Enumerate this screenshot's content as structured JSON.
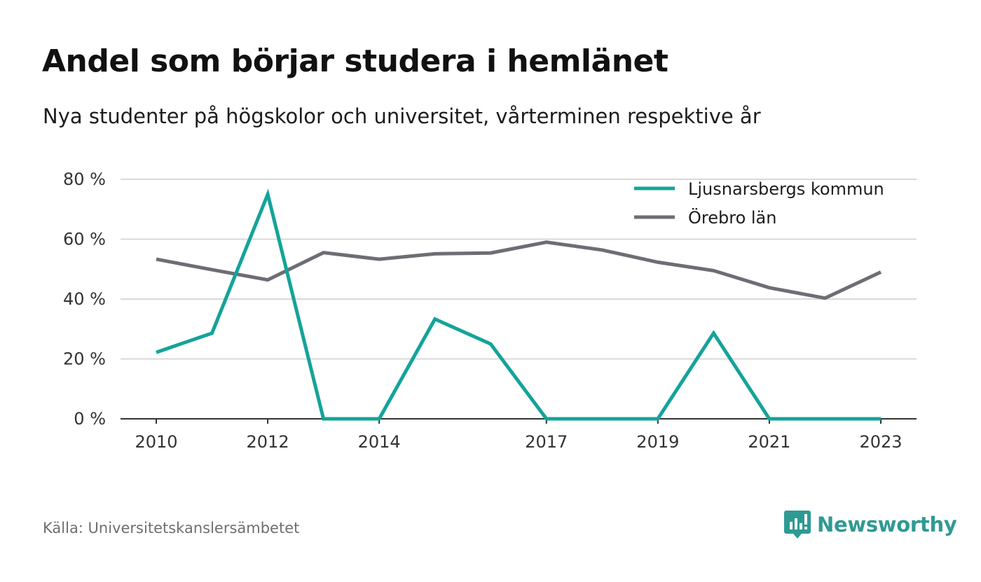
{
  "header": {
    "title": "Andel som börjar studera i hemlänet",
    "subtitle": "Nya studenter på högskolor och universitet, vårterminen respektive år"
  },
  "footer": {
    "source": "Källa: Universitetskanslersämbetet",
    "brand": "Newsworthy",
    "brand_icon": "newsworthy-logo-icon"
  },
  "colors": {
    "ljusnarsberg": "#14a39a",
    "orebro": "#6d6d73",
    "grid": "#d9d9d9",
    "axis": "#333333",
    "brand": "#2e9a93"
  },
  "chart_data": {
    "type": "line",
    "x": [
      2010,
      2011,
      2012,
      2013,
      2014,
      2015,
      2016,
      2017,
      2018,
      2019,
      2020,
      2021,
      2022,
      2023
    ],
    "x_tick_labels": [
      "2010",
      "2012",
      "2014",
      "2017",
      "2019",
      "2021",
      "2023"
    ],
    "x_tick_values": [
      2010,
      2012,
      2014,
      2017,
      2019,
      2021,
      2023
    ],
    "y_tick_labels": [
      "0 %",
      "20 %",
      "40 %",
      "60 %",
      "80 %"
    ],
    "y_tick_values": [
      0,
      20,
      40,
      60,
      80
    ],
    "ylim": [
      0,
      80
    ],
    "grid": true,
    "legend_position": "top-right",
    "series": [
      {
        "name": "Ljusnarsbergs kommun",
        "color_key": "ljusnarsberg",
        "values": [
          22.2,
          28.6,
          75,
          0,
          0,
          33.3,
          25,
          0,
          0,
          0,
          28.6,
          0,
          0,
          0
        ]
      },
      {
        "name": "Örebro län",
        "color_key": "orebro",
        "values": [
          53.3,
          49.8,
          46.4,
          55.5,
          53.3,
          55.1,
          55.4,
          59,
          56.4,
          52.3,
          49.5,
          43.8,
          40.3,
          49
        ]
      }
    ]
  }
}
